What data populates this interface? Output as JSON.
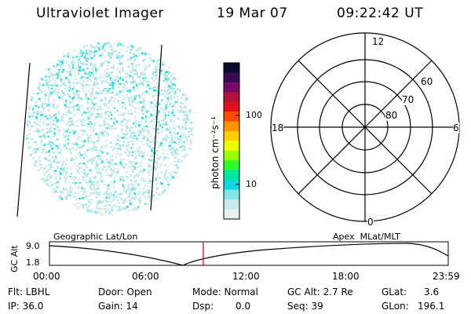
{
  "header": {
    "title": "Ultraviolet Imager",
    "date": "19 Mar 07",
    "time": "09:22:42 UT"
  },
  "colorbar": {
    "unit_label": "photon cm⁻²s⁻¹",
    "tick_labels": [
      "100",
      "10"
    ],
    "colors": [
      "#0b0b2e",
      "#3a0a55",
      "#7a0a6a",
      "#b0103a",
      "#e0101a",
      "#ff4a00",
      "#ff9400",
      "#ffd000",
      "#eeff00",
      "#98ff00",
      "#2cff2c",
      "#00e8a0",
      "#10d8e0",
      "#80e8e8",
      "#c8eaea",
      "#e8f0f0"
    ]
  },
  "polar_grid": {
    "mlt_labels": {
      "top": "12",
      "left": "18",
      "right": "6",
      "bottom": "0"
    },
    "mlat_labels": [
      "60",
      "70",
      "80"
    ]
  },
  "image_panel": {
    "colors": {
      "speck_light": "#cfe8ea",
      "speck_mid": "#9ee3e6",
      "speck_bright": "#22e0e0",
      "border_line": "#000000"
    }
  },
  "altitude_plot": {
    "left_label": "Geographic Lat/Lon",
    "right_label": "Apex  MLat/MLT",
    "axis_label": "GC Alt",
    "y_top": "9.0",
    "y_bottom": "1.8",
    "x_ticks": [
      "00:00",
      "06:00",
      "12:00",
      "18:00",
      "23:59"
    ],
    "marker_color": "#d00000"
  },
  "info": {
    "flt": "Flt: LBHL",
    "ip": "IP: 36.0",
    "door": "Door: Open",
    "gain": "Gain: 14",
    "mode": "Mode: Normal",
    "dsp_label": "Dsp:",
    "dsp_value": "0.0",
    "gc_alt": "GC Alt: 2.7 Re",
    "seq": "Seq: 39",
    "glat_label": "GLat:",
    "glat_value": "3.6",
    "glon_label": "GLon:",
    "glon_value": "196.1"
  }
}
